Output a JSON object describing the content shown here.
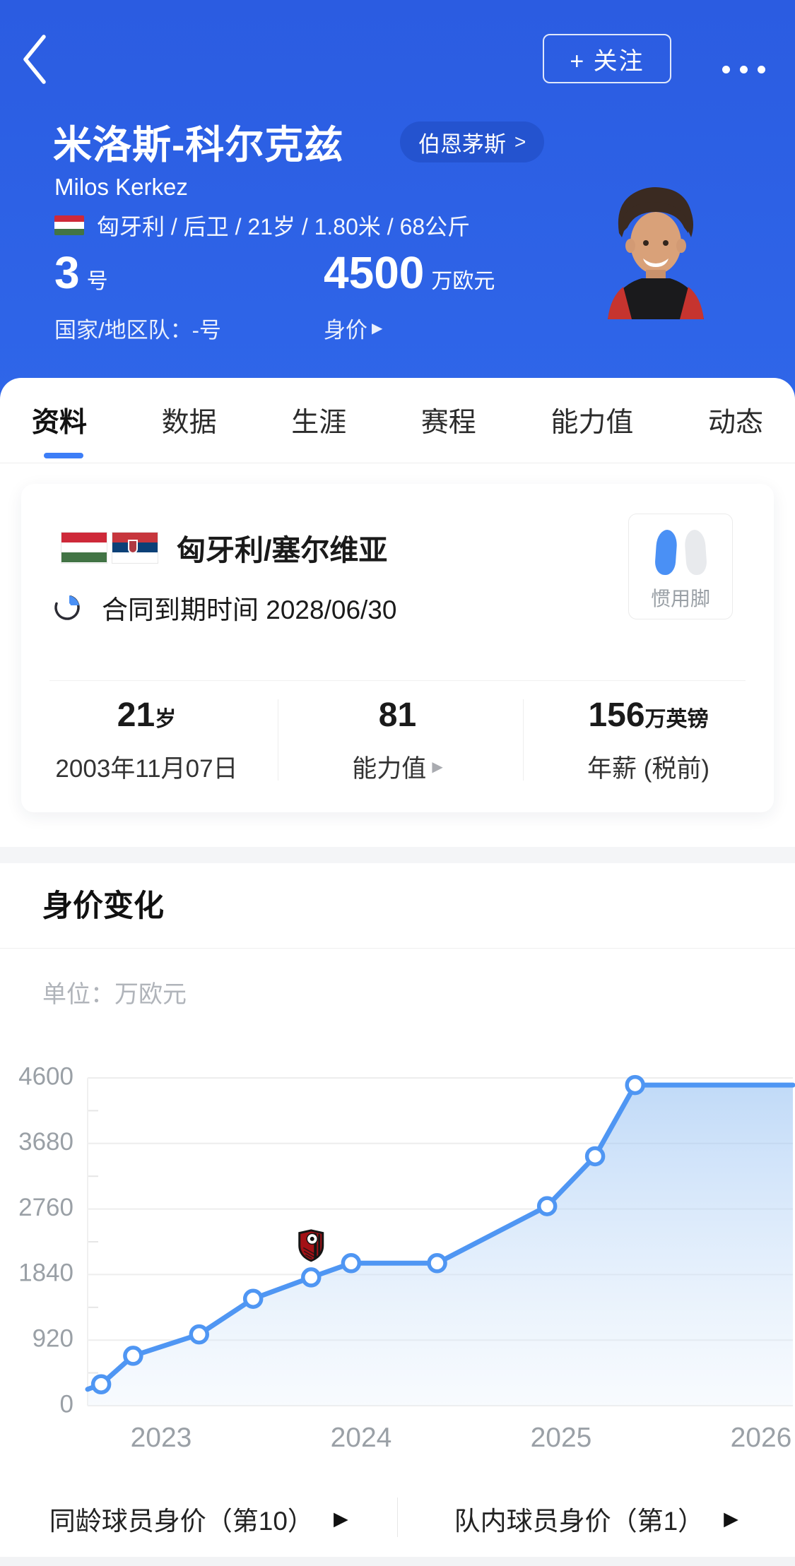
{
  "icons": {
    "arrow_right": "▶",
    "chevron_right": ">"
  },
  "header": {
    "follow_label": "+ 关注",
    "player_name_cn": "米洛斯-科尔克兹",
    "club_name": "伯恩茅斯",
    "player_name_en": "Milos Kerkez",
    "meta_line": "匈牙利 / 后卫 / 21岁 / 1.80米 / 68公斤",
    "shirt_number": "3",
    "shirt_number_unit": "号",
    "national_team_label": "国家/地区队：-号",
    "market_value": "4500",
    "market_value_unit": "万欧元",
    "market_value_label": "身价"
  },
  "tabs": [
    {
      "label": "资料",
      "active": true
    },
    {
      "label": "数据"
    },
    {
      "label": "生涯"
    },
    {
      "label": "赛程"
    },
    {
      "label": "能力值"
    },
    {
      "label": "动态"
    }
  ],
  "profile_card": {
    "nationality": "匈牙利/塞尔维亚",
    "contract_label": "合同到期时间 2028/06/30",
    "preferred_foot_label": "惯用脚",
    "stats": [
      {
        "value": "21",
        "suffix": "岁",
        "label": "2003年11月07日"
      },
      {
        "value": "81",
        "suffix": "",
        "label": "能力值"
      },
      {
        "value": "156",
        "suffix": "万英镑",
        "label": "年薪 (税前)"
      }
    ]
  },
  "value_section": {
    "title": "身价变化",
    "unit_label": "单位：万欧元",
    "links": [
      {
        "label": "同龄球员身价（第10）"
      },
      {
        "label": "队内球员身价（第1）"
      }
    ]
  },
  "chart_data": {
    "type": "area",
    "title": "身价变化",
    "ylabel": "身价(万欧元)",
    "unit": "万欧元",
    "y_ticks": [
      0,
      920,
      1840,
      2760,
      3680,
      4600
    ],
    "y_minor_ticks": [
      460,
      1380,
      2300,
      3220,
      4140
    ],
    "x_ticks": [
      "2023",
      "2024",
      "2025",
      "2026"
    ],
    "x_range": [
      2022.63,
      2026.17
    ],
    "y_range": [
      0,
      4600
    ],
    "grid": true,
    "legend": false,
    "line_start": {
      "x": 2022.63,
      "value": 230
    },
    "line_end": {
      "x": 2026.17,
      "value": 4500
    },
    "points": [
      {
        "x": 2022.7,
        "value": 300
      },
      {
        "x": 2022.86,
        "value": 700
      },
      {
        "x": 2023.19,
        "value": 1000
      },
      {
        "x": 2023.46,
        "value": 1500
      },
      {
        "x": 2023.75,
        "value": 1800
      },
      {
        "x": 2023.95,
        "value": 2000
      },
      {
        "x": 2024.38,
        "value": 2000
      },
      {
        "x": 2024.93,
        "value": 2800
      },
      {
        "x": 2025.17,
        "value": 3500
      },
      {
        "x": 2025.37,
        "value": 4500
      }
    ],
    "badge_point_index": 4,
    "badge_name": "bournemouth-club-badge",
    "colors": {
      "line": "#4f96f3",
      "grid": "#ededed",
      "tick_label": "#9aa0a6",
      "area_top": "#8ebcf2",
      "area_bottom": "#eaf3fc"
    }
  }
}
